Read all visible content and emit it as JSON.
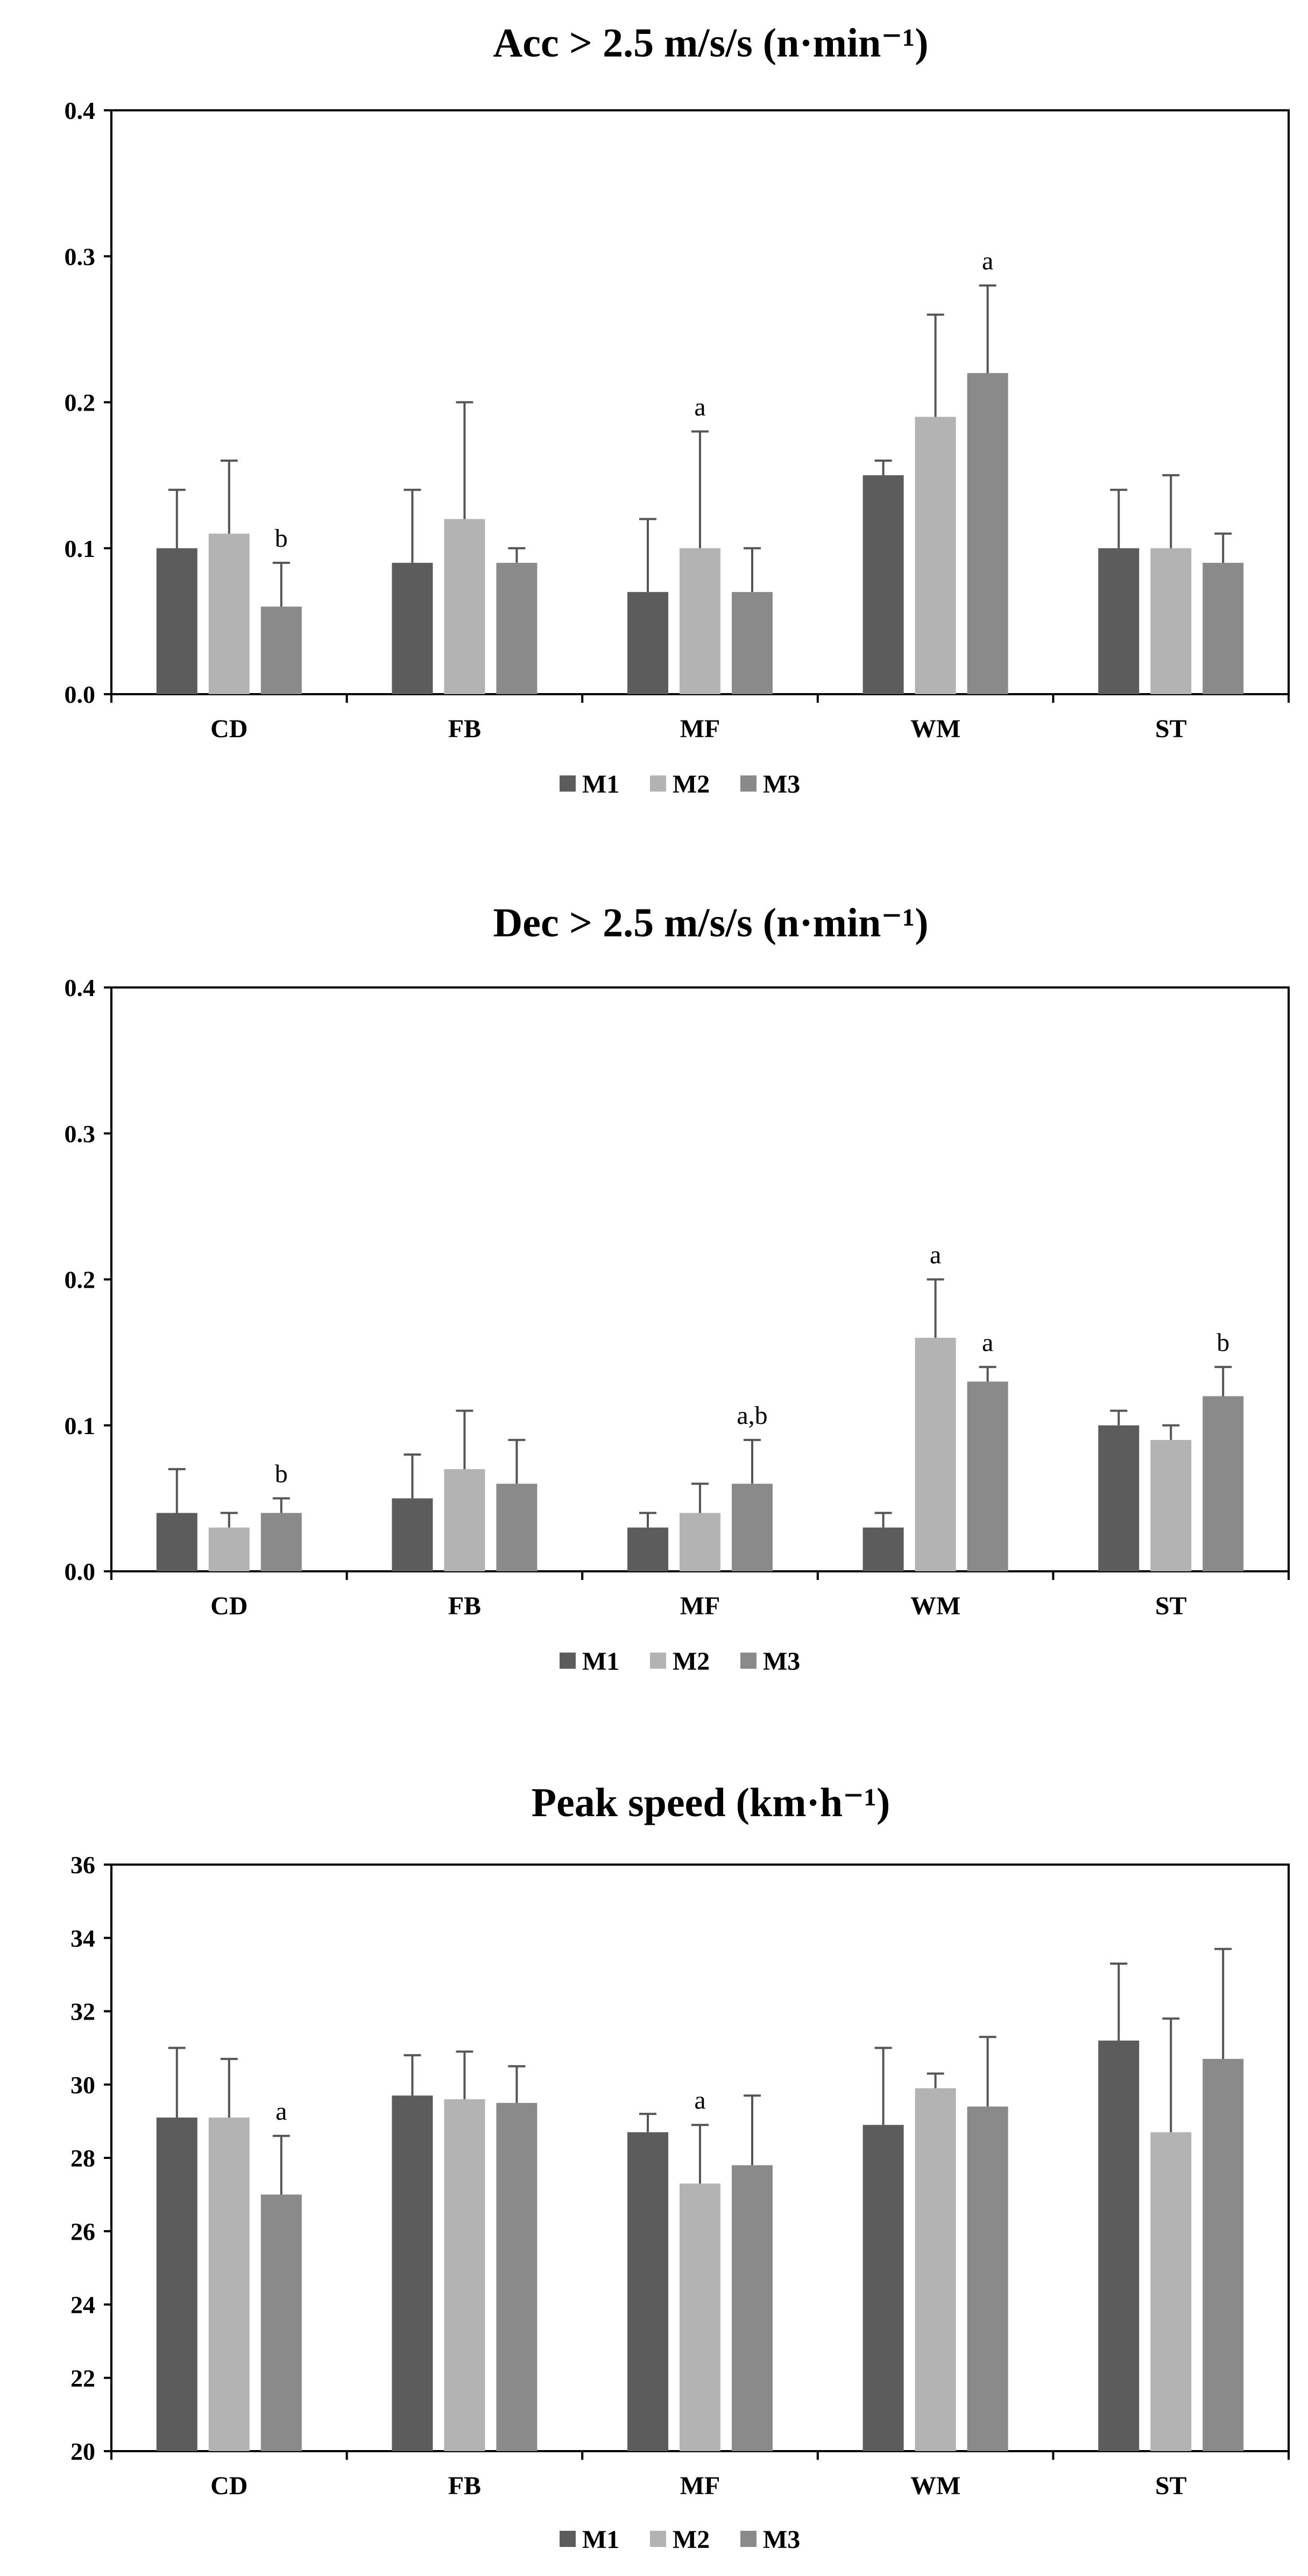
{
  "chart_data": [
    {
      "type": "bar",
      "title": "Acc > 2.5 m/s/s (n·min⁻¹)",
      "xlabel": "",
      "ylabel": "",
      "categories": [
        "CD",
        "FB",
        "MF",
        "WM",
        "ST"
      ],
      "ylim": [
        0.0,
        0.4
      ],
      "yticks": [
        "0.0",
        "0.1",
        "0.2",
        "0.3",
        "0.4"
      ],
      "grid": false,
      "legend": "bottom-center",
      "series": [
        {
          "name": "M1",
          "color": "#5c5c5c",
          "values": [
            0.1,
            0.09,
            0.07,
            0.15,
            0.1
          ],
          "errors": [
            0.04,
            0.05,
            0.05,
            0.01,
            0.04
          ],
          "annotations": [
            "",
            "",
            "",
            "",
            ""
          ]
        },
        {
          "name": "M2",
          "color": "#b3b3b3",
          "values": [
            0.11,
            0.12,
            0.1,
            0.19,
            0.1
          ],
          "errors": [
            0.05,
            0.08,
            0.08,
            0.07,
            0.05
          ],
          "annotations": [
            "",
            "",
            "a",
            "",
            ""
          ]
        },
        {
          "name": "M3",
          "color": "#8a8a8a",
          "values": [
            0.06,
            0.09,
            0.07,
            0.22,
            0.09
          ],
          "errors": [
            0.03,
            0.01,
            0.03,
            0.06,
            0.02
          ],
          "annotations": [
            "b",
            "",
            "",
            "a",
            ""
          ]
        }
      ]
    },
    {
      "type": "bar",
      "title": "Dec > 2.5 m/s/s (n·min⁻¹)",
      "xlabel": "",
      "ylabel": "",
      "categories": [
        "CD",
        "FB",
        "MF",
        "WM",
        "ST"
      ],
      "ylim": [
        0.0,
        0.4
      ],
      "yticks": [
        "0.0",
        "0.1",
        "0.2",
        "0.3",
        "0.4"
      ],
      "grid": false,
      "legend": "bottom-center",
      "series": [
        {
          "name": "M1",
          "color": "#5c5c5c",
          "values": [
            0.04,
            0.05,
            0.03,
            0.03,
            0.1
          ],
          "errors": [
            0.03,
            0.03,
            0.01,
            0.01,
            0.01
          ],
          "annotations": [
            "",
            "",
            "",
            "",
            ""
          ]
        },
        {
          "name": "M2",
          "color": "#b3b3b3",
          "values": [
            0.03,
            0.07,
            0.04,
            0.16,
            0.09
          ],
          "errors": [
            0.01,
            0.04,
            0.02,
            0.04,
            0.01
          ],
          "annotations": [
            "",
            "",
            "",
            "a",
            ""
          ]
        },
        {
          "name": "M3",
          "color": "#8a8a8a",
          "values": [
            0.04,
            0.06,
            0.06,
            0.13,
            0.12
          ],
          "errors": [
            0.01,
            0.03,
            0.03,
            0.01,
            0.02
          ],
          "annotations": [
            "b",
            "",
            "a,b",
            "a",
            "b"
          ]
        }
      ]
    },
    {
      "type": "bar",
      "title": "Peak speed (km·h⁻¹)",
      "xlabel": "",
      "ylabel": "",
      "categories": [
        "CD",
        "FB",
        "MF",
        "WM",
        "ST"
      ],
      "ylim": [
        20,
        36
      ],
      "yticks": [
        "20",
        "22",
        "24",
        "26",
        "28",
        "30",
        "32",
        "34",
        "36"
      ],
      "grid": false,
      "legend": "bottom-center",
      "series": [
        {
          "name": "M1",
          "color": "#5c5c5c",
          "values": [
            29.1,
            29.7,
            28.7,
            28.9,
            31.2
          ],
          "errors": [
            1.9,
            1.1,
            0.5,
            2.1,
            2.1
          ],
          "annotations": [
            "",
            "",
            "",
            "",
            ""
          ]
        },
        {
          "name": "M2",
          "color": "#b3b3b3",
          "values": [
            29.1,
            29.6,
            27.3,
            29.9,
            28.7
          ],
          "errors": [
            1.6,
            1.3,
            1.6,
            0.4,
            3.1
          ],
          "annotations": [
            "",
            "",
            "a",
            "",
            ""
          ]
        },
        {
          "name": "M3",
          "color": "#8a8a8a",
          "values": [
            27.0,
            29.5,
            27.8,
            29.4,
            30.7
          ],
          "errors": [
            1.6,
            1.0,
            1.9,
            1.9,
            3.0
          ],
          "annotations": [
            "a",
            "",
            "",
            "",
            ""
          ]
        }
      ]
    }
  ]
}
